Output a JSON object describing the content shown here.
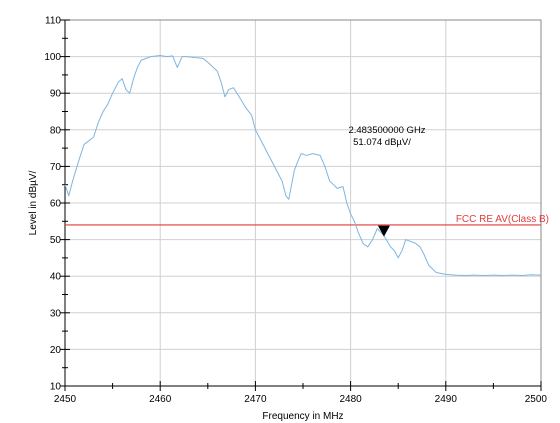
{
  "chart_data": {
    "type": "line",
    "title": "",
    "xlabel": "Frequency in MHz",
    "ylabel": "Level in dBµV/",
    "xlim": [
      2450,
      2500
    ],
    "ylim": [
      10,
      110
    ],
    "x_ticks": [
      "2450",
      "2460",
      "2470",
      "2480",
      "2490",
      "2500"
    ],
    "y_ticks": [
      "10",
      "20",
      "30",
      "40",
      "50",
      "60",
      "70",
      "80",
      "90",
      "100",
      "110"
    ],
    "grid": true,
    "series": [
      {
        "color": "#7fb5e0",
        "x": [
          2450,
          2450.4,
          2450.8,
          2451.5,
          2452,
          2453,
          2453.5,
          2454,
          2454.5,
          2455,
          2455.6,
          2456,
          2456.4,
          2456.8,
          2457.2,
          2457.6,
          2458,
          2459,
          2460,
          2460.7,
          2461.3,
          2461.8,
          2462.3,
          2462.8,
          2463.5,
          2464.5,
          2465.2,
          2465.6,
          2466,
          2466.4,
          2466.8,
          2467.2,
          2467.7,
          2468.3,
          2469,
          2469.6,
          2470,
          2470.6,
          2471.2,
          2471.8,
          2472.4,
          2472.8,
          2473.2,
          2473.5,
          2473.8,
          2474.1,
          2474.4,
          2474.8,
          2475.4,
          2476,
          2476.8,
          2477.3,
          2477.8,
          2478.2,
          2478.6,
          2479.2,
          2479.6,
          2480,
          2480.4,
          2480.8,
          2481.3,
          2481.8,
          2482.3,
          2482.8,
          2483.5,
          2484.2,
          2484.6,
          2485,
          2485.4,
          2485.8,
          2486.3,
          2486.8,
          2487.3,
          2487.7,
          2488.2,
          2488.6,
          2489,
          2490,
          2491,
          2492,
          2493,
          2494,
          2495,
          2496,
          2497,
          2498,
          2499,
          2500
        ],
        "y": [
          65,
          62,
          66,
          72,
          76,
          78,
          82,
          85,
          87,
          90,
          93,
          94,
          91,
          90,
          94,
          97,
          99,
          100,
          100.3,
          100,
          100.2,
          97,
          100,
          100,
          99.8,
          99.5,
          98,
          97,
          96,
          93,
          89,
          91,
          91.5,
          89,
          86,
          84,
          80,
          77,
          74,
          71,
          68,
          66,
          62,
          61,
          65,
          69,
          71,
          73.5,
          73,
          73.5,
          73,
          70,
          66,
          65,
          64,
          64.5,
          60,
          57,
          55,
          52,
          49,
          48,
          50,
          53,
          51.1,
          48,
          47,
          45,
          47,
          50,
          49.5,
          49,
          48,
          46,
          43,
          42,
          41,
          40.5,
          40.3,
          40.2,
          40.3,
          40.2,
          40.3,
          40.2,
          40.3,
          40.2,
          40.4,
          40.3
        ]
      }
    ],
    "limit_line": {
      "label": "FCC RE AV(Class B)",
      "value": 54,
      "color": "#e23b3b"
    },
    "marker": {
      "x": 2483.5,
      "y": 51.074,
      "freq_text": "2.483500000 GHz",
      "level_text": "51.074 dBµV/"
    }
  }
}
